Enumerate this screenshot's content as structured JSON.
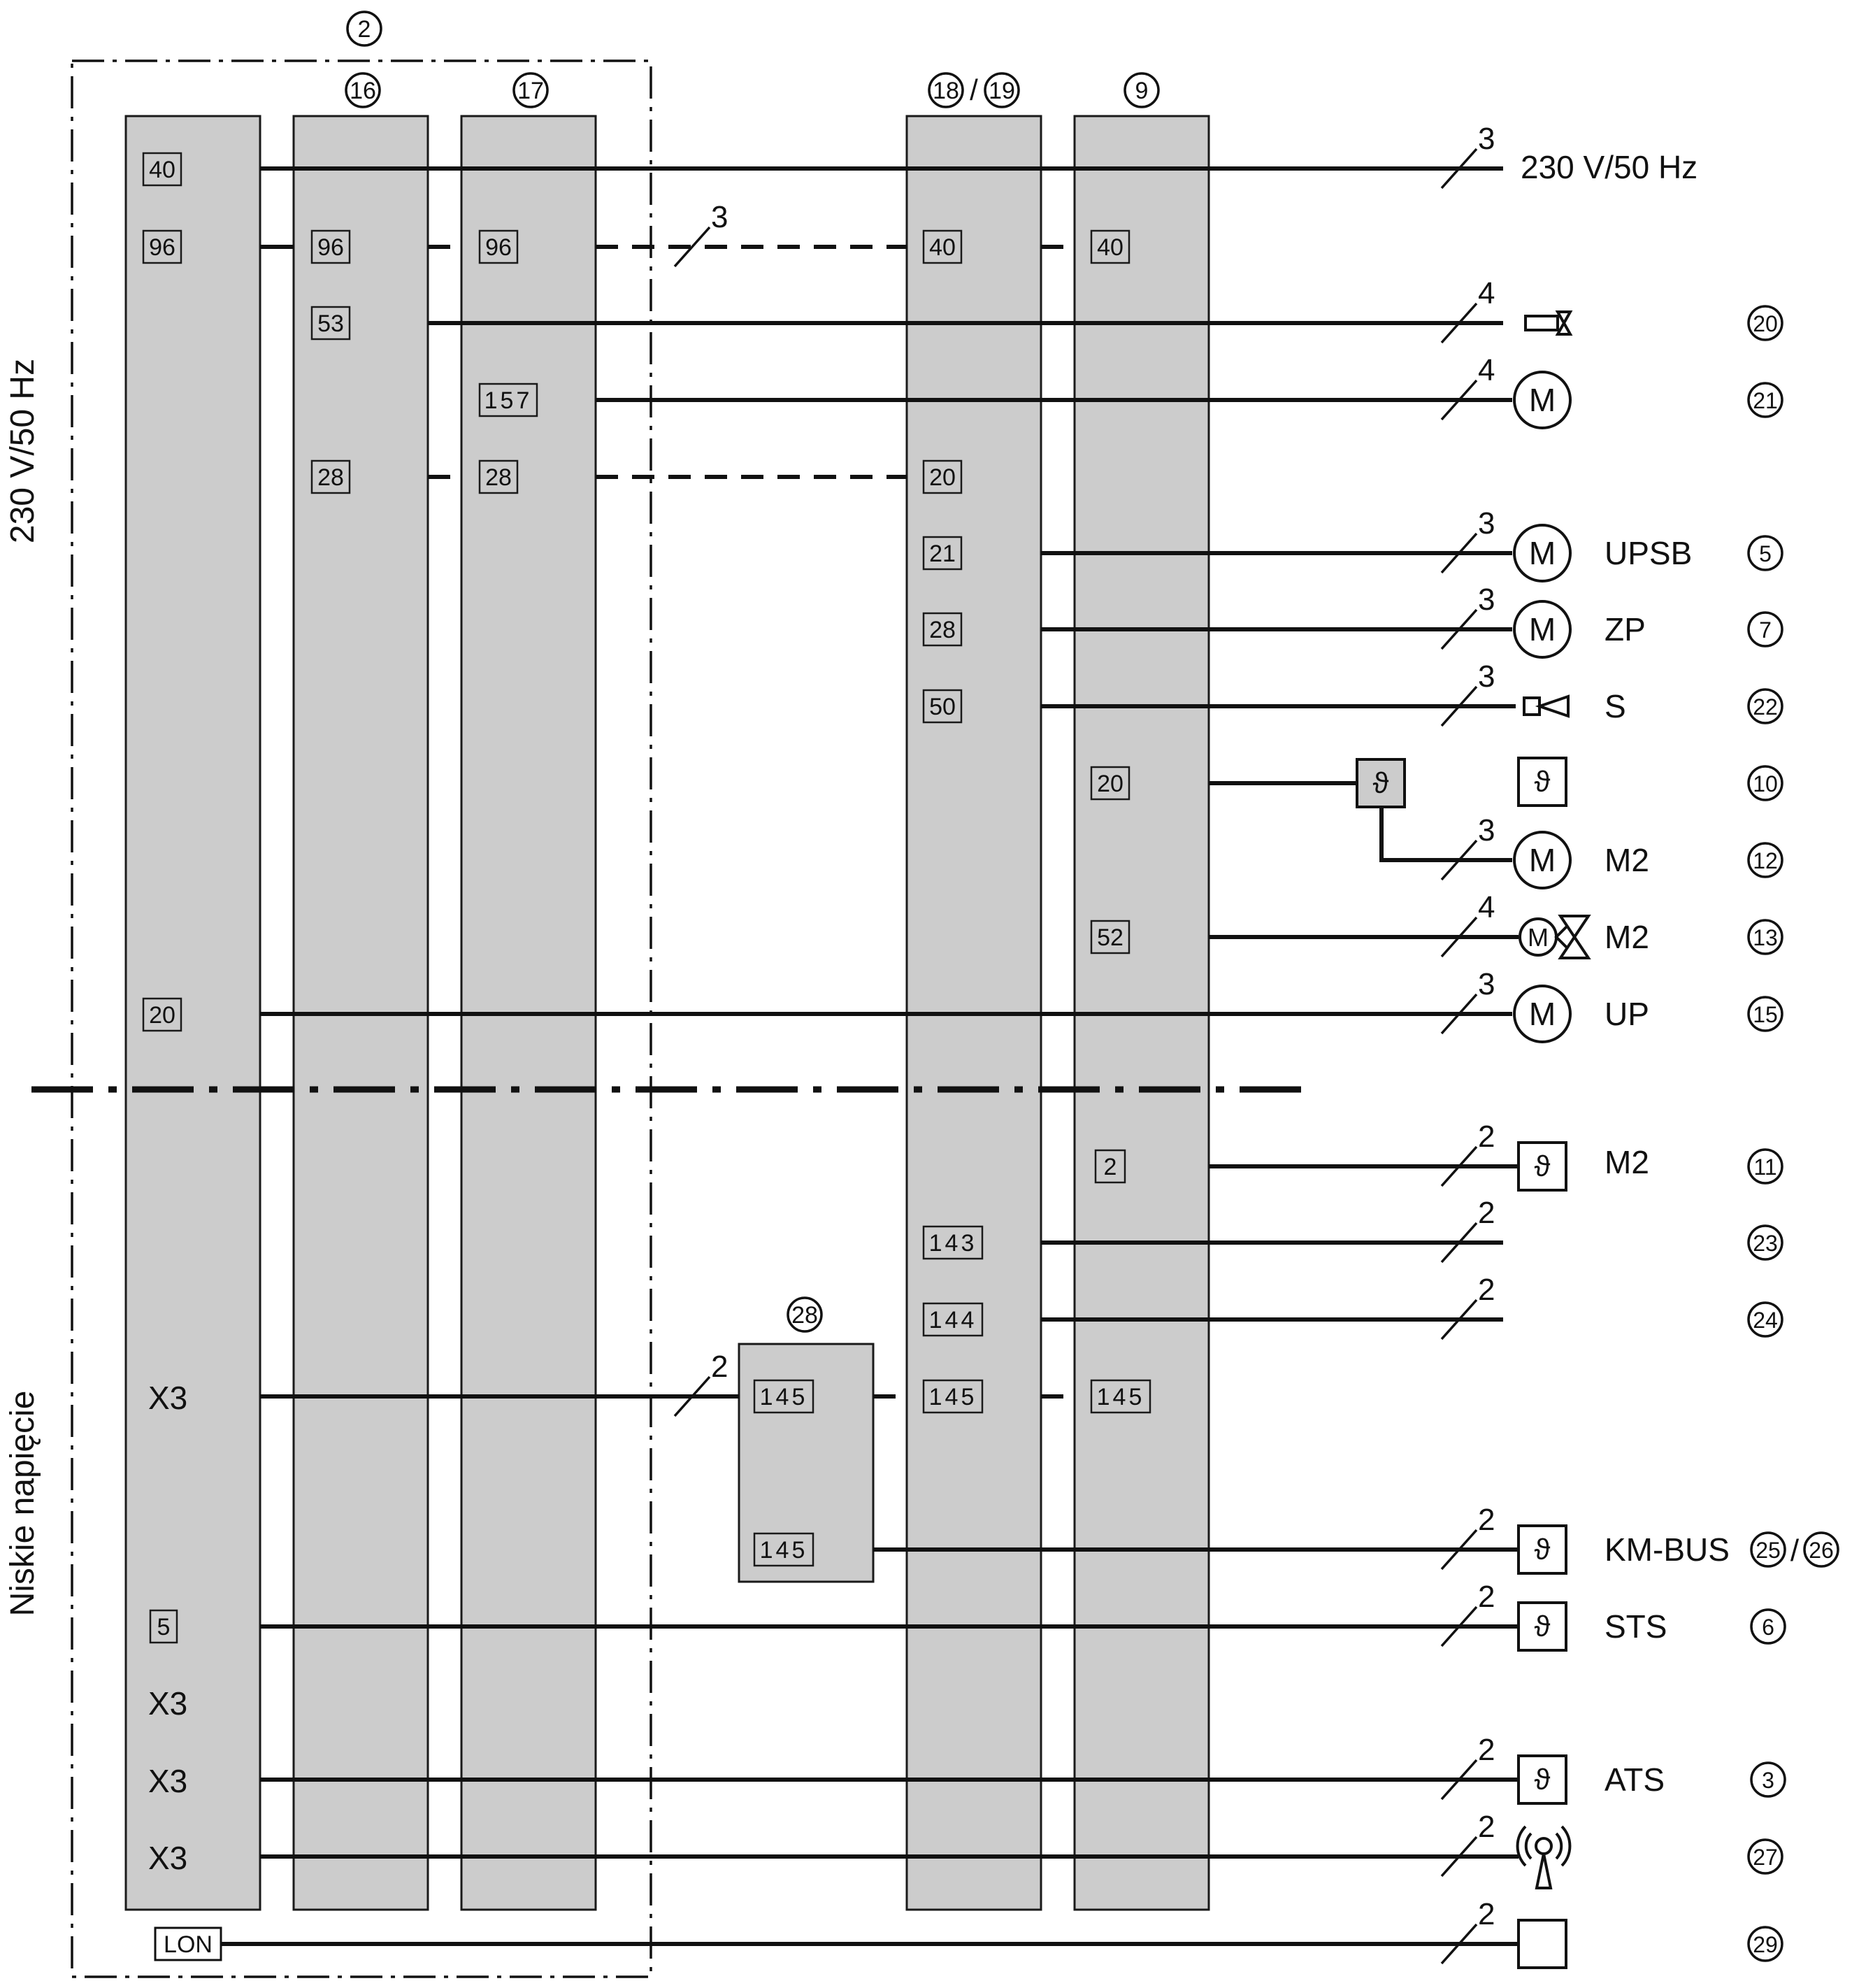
{
  "side_labels": {
    "upper": "230 V/50 Hz",
    "lower": "Niskie napięcie"
  },
  "module_refs": {
    "frame": "2",
    "col2": "16",
    "col3": "17",
    "col4": [
      "18",
      "19"
    ],
    "col5": "9",
    "sub": "28"
  },
  "slash": "/",
  "terminals": {
    "c1": [
      "40",
      "96",
      "20",
      "X3",
      "5",
      "X3",
      "X3",
      "X3"
    ],
    "c2": [
      "96",
      "53",
      "28"
    ],
    "c3": [
      "96",
      "157",
      "28"
    ],
    "c4": [
      "40",
      "20",
      "21",
      "28",
      "50",
      "143",
      "144",
      "145"
    ],
    "c5": [
      "40",
      "20",
      "52",
      "2",
      "145"
    ],
    "sub": [
      "145",
      "145"
    ],
    "lon": "LON"
  },
  "wire_counts": {
    "supply": "3",
    "bus96": "3",
    "r20": "4",
    "r21": "4",
    "r5": "3",
    "r7": "3",
    "r22": "3",
    "r12": "3",
    "r13": "4",
    "r15": "3",
    "r11": "2",
    "r23": "2",
    "r24": "2",
    "rx3": "2",
    "r25": "2",
    "r6": "2",
    "r3": "2",
    "r27": "2",
    "r29": "2"
  },
  "supply_label": "230 V/50 Hz",
  "symbols": {
    "motor": "M",
    "sensor": "ϑ"
  },
  "device_labels": {
    "r5": "UPSB",
    "r7": "ZP",
    "r22": "S",
    "r12": "M2",
    "r13": "M2",
    "r15": "UP",
    "r11": "M2",
    "r25": "KM-BUS",
    "r6": "STS",
    "r3": "ATS"
  },
  "refs": {
    "r20": "20",
    "r21": "21",
    "r5": "5",
    "r7": "7",
    "r22": "22",
    "r10": "10",
    "r12": "12",
    "r13": "13",
    "r15": "15",
    "r11": "11",
    "r23": "23",
    "r24": "24",
    "r25a": "25",
    "r25b": "26",
    "r6": "6",
    "r3": "3",
    "r27": "27",
    "r29": "29"
  }
}
